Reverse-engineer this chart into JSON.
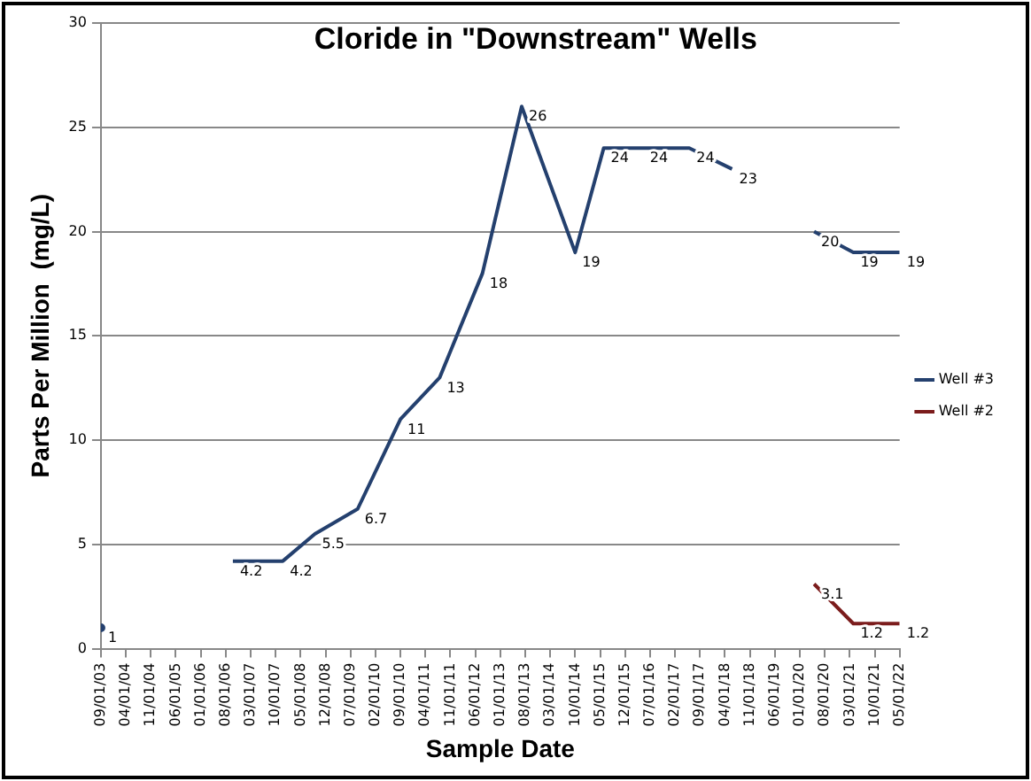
{
  "chart_data": {
    "type": "line",
    "title": "Cloride in \"Downstream\" Wells",
    "xlabel": "Sample Date",
    "ylabel": "Parts Per Million  (mg/L)",
    "series": [
      {
        "name": "Well #3",
        "color": "#24406e",
        "x": [
          "2003-09-01",
          "2005-03-01",
          "2006-10-01",
          "2007-12-01",
          "2008-09-01",
          "2009-09-01",
          "2010-09-01",
          "2011-08-01",
          "2012-08-01",
          "2013-07-01",
          "2014-10-01",
          "2015-06-01",
          "2016-05-01",
          "2017-06-01",
          "2018-06-01",
          "2019-06-01",
          "2020-05-01",
          "2021-04-01",
          "2022-05-01"
        ],
        "values": [
          1,
          null,
          4.2,
          4.2,
          5.5,
          6.7,
          11,
          13,
          18,
          26,
          19,
          24,
          24,
          24,
          23,
          null,
          20,
          19,
          19
        ]
      },
      {
        "name": "Well #2",
        "color": "#7b1c1c",
        "x": [
          "2020-05-01",
          "2021-04-01",
          "2022-05-01"
        ],
        "values": [
          3.1,
          1.2,
          1.2
        ]
      }
    ],
    "xlim": [
      "2003-09-01",
      "2022-05-01"
    ],
    "xticks": [
      {
        "value": "2003-09-01",
        "label": "09/01/03"
      },
      {
        "value": "2004-04-01",
        "label": "04/01/04"
      },
      {
        "value": "2004-11-01",
        "label": "11/01/04"
      },
      {
        "value": "2005-06-01",
        "label": "06/01/05"
      },
      {
        "value": "2006-01-01",
        "label": "01/01/06"
      },
      {
        "value": "2006-08-01",
        "label": "08/01/06"
      },
      {
        "value": "2007-03-01",
        "label": "03/01/07"
      },
      {
        "value": "2007-10-01",
        "label": "10/01/07"
      },
      {
        "value": "2008-05-01",
        "label": "05/01/08"
      },
      {
        "value": "2008-12-01",
        "label": "12/01/08"
      },
      {
        "value": "2009-07-01",
        "label": "07/01/09"
      },
      {
        "value": "2010-02-01",
        "label": "02/01/10"
      },
      {
        "value": "2010-09-01",
        "label": "09/01/10"
      },
      {
        "value": "2011-04-01",
        "label": "04/01/11"
      },
      {
        "value": "2011-11-01",
        "label": "11/01/11"
      },
      {
        "value": "2012-06-01",
        "label": "06/01/12"
      },
      {
        "value": "2013-01-01",
        "label": "01/01/13"
      },
      {
        "value": "2013-08-01",
        "label": "08/01/13"
      },
      {
        "value": "2014-03-01",
        "label": "03/01/14"
      },
      {
        "value": "2014-10-01",
        "label": "10/01/14"
      },
      {
        "value": "2015-05-01",
        "label": "05/01/15"
      },
      {
        "value": "2015-12-01",
        "label": "12/01/15"
      },
      {
        "value": "2016-07-01",
        "label": "07/01/16"
      },
      {
        "value": "2017-02-01",
        "label": "02/01/17"
      },
      {
        "value": "2017-09-01",
        "label": "09/01/17"
      },
      {
        "value": "2018-04-01",
        "label": "04/01/18"
      },
      {
        "value": "2018-11-01",
        "label": "11/01/18"
      },
      {
        "value": "2019-06-01",
        "label": "06/01/19"
      },
      {
        "value": "2020-01-01",
        "label": "01/01/20"
      },
      {
        "value": "2020-08-01",
        "label": "08/01/20"
      },
      {
        "value": "2021-03-01",
        "label": "03/01/21"
      },
      {
        "value": "2021-10-01",
        "label": "10/01/21"
      },
      {
        "value": "2022-05-01",
        "label": "05/01/22"
      }
    ],
    "ylim": [
      0,
      30
    ],
    "yticks": [
      0,
      5,
      10,
      15,
      20,
      25,
      30
    ],
    "grid": "y",
    "legend": "right",
    "marker": "none",
    "line_style": "solid",
    "data_labels": true
  }
}
